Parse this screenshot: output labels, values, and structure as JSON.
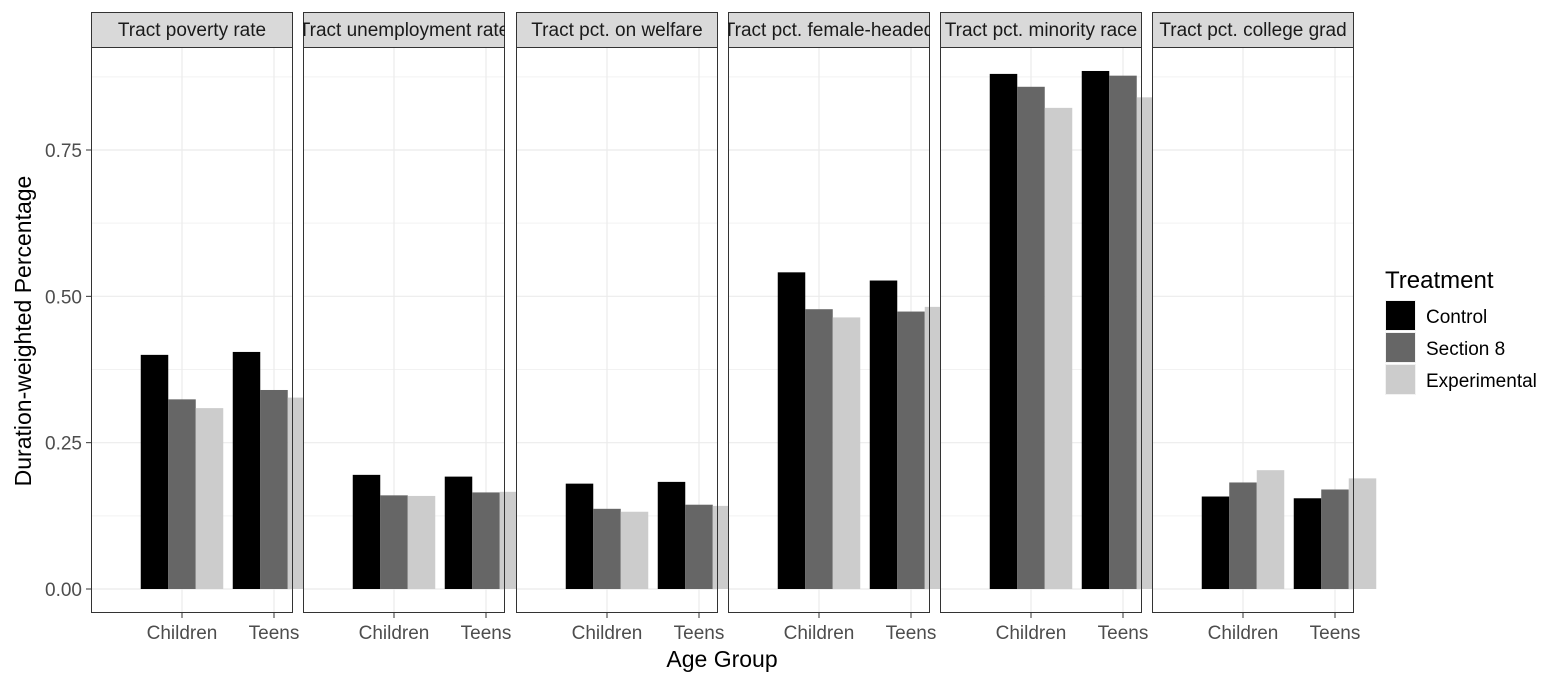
{
  "chart_data": {
    "type": "bar",
    "facets": [
      "Tract poverty rate",
      "Tract unemployment rate",
      "Tract pct. on welfare",
      "Tract pct. female-headed",
      "Tract pct. minority race",
      "Tract pct. college grad"
    ],
    "categories": [
      "Children",
      "Teens"
    ],
    "series": [
      {
        "name": "Control",
        "color": "#000000",
        "values": [
          [
            0.4,
            0.405
          ],
          [
            0.195,
            0.192
          ],
          [
            0.18,
            0.183
          ],
          [
            0.541,
            0.527
          ],
          [
            0.88,
            0.885
          ],
          [
            0.158,
            0.155
          ]
        ]
      },
      {
        "name": "Section 8",
        "color": "#666666",
        "values": [
          [
            0.324,
            0.34
          ],
          [
            0.16,
            0.165
          ],
          [
            0.137,
            0.144
          ],
          [
            0.478,
            0.474
          ],
          [
            0.858,
            0.877
          ],
          [
            0.182,
            0.17
          ]
        ]
      },
      {
        "name": "Experimental",
        "color": "#cccccc",
        "values": [
          [
            0.309,
            0.327
          ],
          [
            0.159,
            0.166
          ],
          [
            0.132,
            0.142
          ],
          [
            0.464,
            0.482
          ],
          [
            0.822,
            0.84
          ],
          [
            0.203,
            0.189
          ]
        ]
      }
    ],
    "xlabel": "Age Group",
    "ylabel": "Duration-weighted Percentage",
    "ylim": [
      -0.045,
      0.94
    ],
    "yticks": [
      0.0,
      0.25,
      0.5,
      0.75
    ],
    "ytick_labels": [
      "0.00",
      "0.25",
      "0.50",
      "0.75"
    ],
    "legend_title": "Treatment",
    "legend_position": "right",
    "grid": true,
    "theme": "black-and-white"
  }
}
